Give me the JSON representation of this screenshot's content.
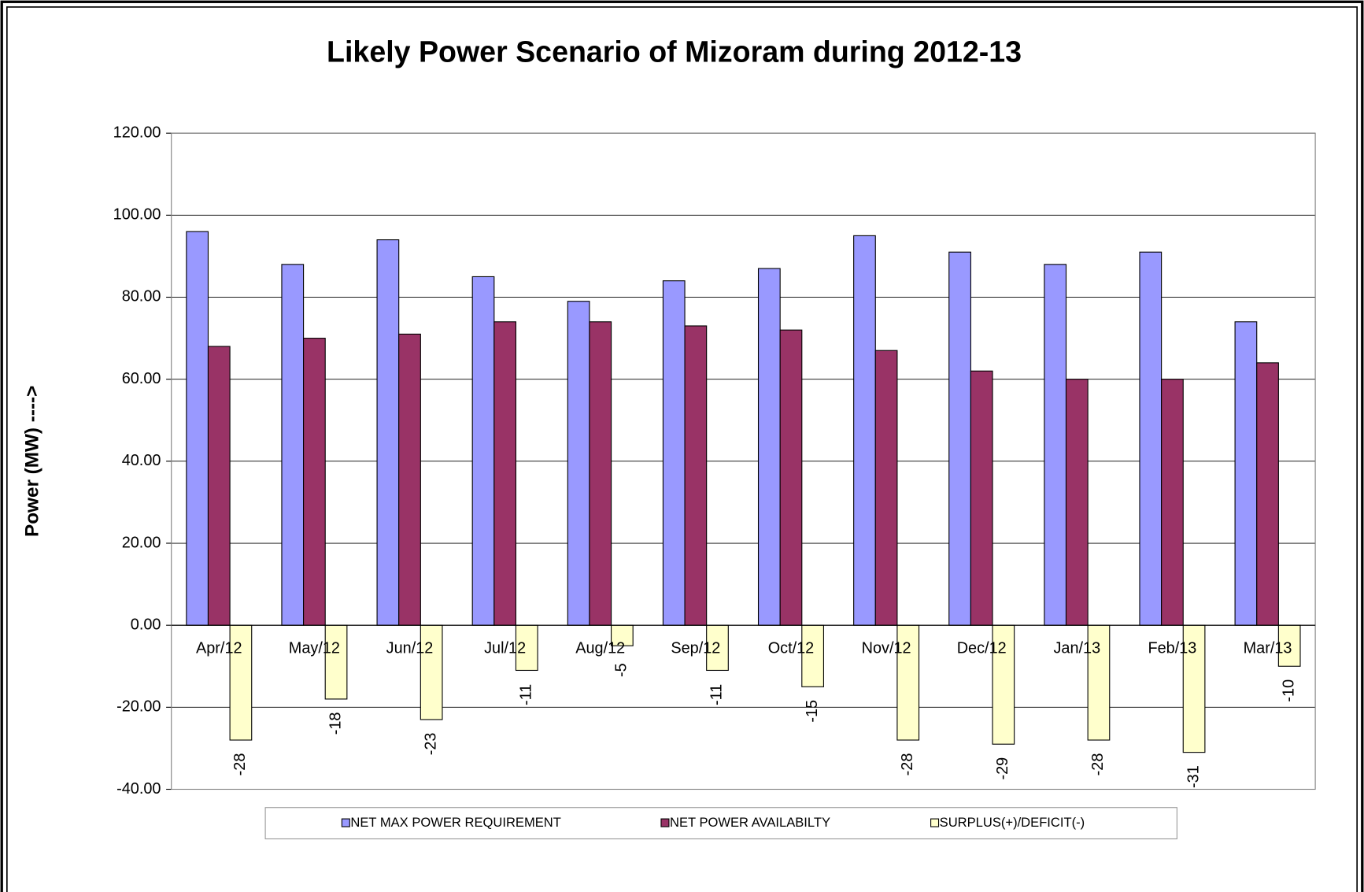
{
  "chart_data": {
    "type": "bar",
    "title": "Likely Power Scenario of Mizoram during 2012-13",
    "y_label": "Power (MW) ---->",
    "categories": [
      "Apr/12",
      "May/12",
      "Jun/12",
      "Jul/12",
      "Aug/12",
      "Sep/12",
      "Oct/12",
      "Nov/12",
      "Dec/12",
      "Jan/13",
      "Feb/13",
      "Mar/13"
    ],
    "series": [
      {
        "name": "NET MAX POWER REQUIREMENT",
        "color": "#9999ff",
        "values": [
          96,
          88,
          94,
          85,
          79,
          84,
          87,
          95,
          91,
          88,
          91,
          74
        ]
      },
      {
        "name": "NET POWER AVAILABILTY",
        "color": "#993366",
        "values": [
          68,
          70,
          71,
          74,
          74,
          73,
          72,
          67,
          62,
          60,
          60,
          64
        ]
      },
      {
        "name": "SURPLUS(+)/DEFICIT(-)",
        "color": "#ffffcc",
        "values": [
          -28,
          -18,
          -23,
          -11,
          -5,
          -11,
          -15,
          -28,
          -29,
          -28,
          -31,
          -10
        ],
        "data_labels": true
      }
    ],
    "ylim": [
      -40,
      120
    ],
    "yticks": [
      {
        "value": -40,
        "label": "-40.00"
      },
      {
        "value": -20,
        "label": "-20.00"
      },
      {
        "value": 0,
        "label": "0.00"
      },
      {
        "value": 20,
        "label": "20.00"
      },
      {
        "value": 40,
        "label": "40.00"
      },
      {
        "value": 60,
        "label": "60.00"
      },
      {
        "value": 80,
        "label": "80.00"
      },
      {
        "value": 100,
        "label": "100.00"
      },
      {
        "value": 120,
        "label": "120.00"
      }
    ],
    "grid": true,
    "legend": "bottom"
  }
}
